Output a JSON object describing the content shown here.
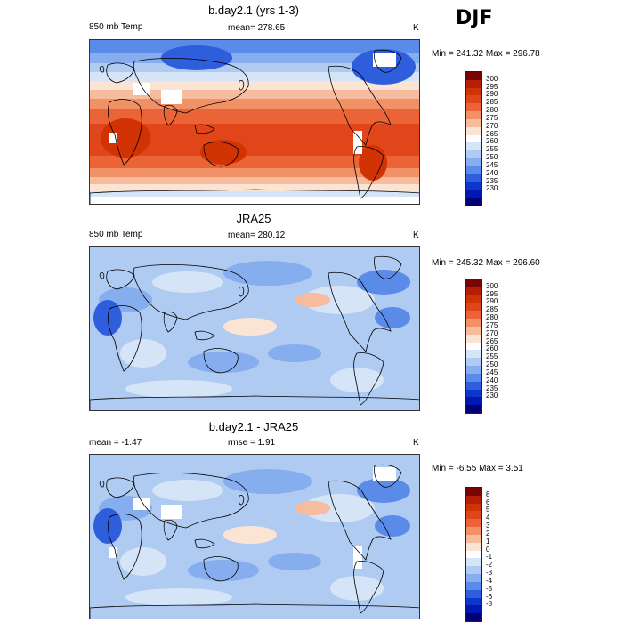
{
  "season": "DJF",
  "panels": [
    {
      "title": "b.day2.1 (yrs 1-3)",
      "left_label": "850 mb Temp",
      "center_label": "mean= 278.65",
      "units": "K",
      "minmax": "Min = 241.32 Max = 296.78",
      "legend": {
        "labels": [
          "300",
          "295",
          "290",
          "285",
          "280",
          "275",
          "270",
          "265",
          "260",
          "255",
          "250",
          "245",
          "240",
          "235",
          "230"
        ],
        "colors": [
          "#7a0403",
          "#b51e05",
          "#d23305",
          "#e1461a",
          "#ea6438",
          "#f29066",
          "#f7bc9d",
          "#fce4d5",
          "#ffffff",
          "#d6e4f7",
          "#b0cbf1",
          "#86aded",
          "#5b8be8",
          "#2e5edc",
          "#0b36d0",
          "#0017b0",
          "#00007a"
        ]
      }
    },
    {
      "title": "JRA25",
      "left_label": "850 mb Temp",
      "center_label": "mean= 280.12",
      "units": "K",
      "minmax": "Min = 245.32 Max = 296.60",
      "legend": {
        "labels": [
          "300",
          "295",
          "290",
          "285",
          "280",
          "275",
          "270",
          "265",
          "260",
          "255",
          "250",
          "245",
          "240",
          "235",
          "230"
        ],
        "colors": [
          "#7a0403",
          "#b51e05",
          "#d23305",
          "#e1461a",
          "#ea6438",
          "#f29066",
          "#f7bc9d",
          "#fce4d5",
          "#ffffff",
          "#d6e4f7",
          "#b0cbf1",
          "#86aded",
          "#5b8be8",
          "#2e5edc",
          "#0b36d0",
          "#0017b0",
          "#00007a"
        ]
      }
    },
    {
      "title": "b.day2.1 - JRA25",
      "left_label": "mean =  -1.47",
      "center_label": "rmse =   1.91",
      "units": "K",
      "minmax": "Min =  -6.55 Max =   3.51",
      "legend": {
        "labels": [
          "8",
          "6",
          "5",
          "4",
          "3",
          "2",
          "1",
          "0",
          "-1",
          "-2",
          "-3",
          "-4",
          "-5",
          "-6",
          "-8"
        ],
        "colors": [
          "#7a0403",
          "#b51e05",
          "#d23305",
          "#e1461a",
          "#ea6438",
          "#f29066",
          "#f7bc9d",
          "#fce4d5",
          "#ffffff",
          "#d6e4f7",
          "#b0cbf1",
          "#86aded",
          "#5b8be8",
          "#2e5edc",
          "#0b36d0",
          "#0017b0",
          "#00007a"
        ]
      }
    }
  ]
}
